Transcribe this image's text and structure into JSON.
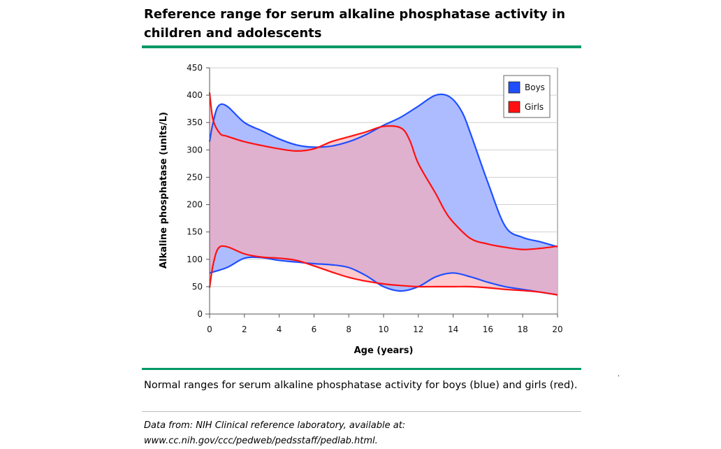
{
  "page": {
    "title": "Reference range for serum alkaline phosphatase activity in children and adolescents",
    "caption": "Normal ranges for serum alkaline phosphatase activity for boys (blue) and girls (red).",
    "source_line1": "Data from: NIH Clinical reference laboratory, available at:",
    "source_line2": "www.cc.nih.gov/ccc/pedweb/pedsstaff/pedlab.html.",
    "stray_mark": "."
  },
  "chart_data": {
    "type": "area",
    "title": "Reference range for serum alkaline phosphatase activity in children and adolescents",
    "xlabel": "Age (years)",
    "ylabel": "Alkaline phosphatase (units/L)",
    "xlim": [
      0,
      20
    ],
    "ylim": [
      0,
      450
    ],
    "x_ticks": [
      0,
      2,
      4,
      6,
      8,
      10,
      12,
      14,
      16,
      18,
      20
    ],
    "y_ticks": [
      0,
      50,
      100,
      150,
      200,
      250,
      300,
      350,
      400,
      450
    ],
    "grid": "horizontal",
    "legend_position": "top-right",
    "series": [
      {
        "name": "Boys",
        "color": "#1f4fff",
        "fill": "#a9b8ff",
        "upper": [
          [
            0,
            315
          ],
          [
            0.2,
            350
          ],
          [
            0.5,
            380
          ],
          [
            1,
            380
          ],
          [
            2,
            350
          ],
          [
            3,
            335
          ],
          [
            4,
            320
          ],
          [
            5,
            309
          ],
          [
            6,
            305
          ],
          [
            7,
            307
          ],
          [
            8,
            315
          ],
          [
            9,
            328
          ],
          [
            10,
            345
          ],
          [
            11,
            360
          ],
          [
            12,
            380
          ],
          [
            13,
            400
          ],
          [
            13.8,
            397
          ],
          [
            14.5,
            370
          ],
          [
            15,
            330
          ],
          [
            16,
            240
          ],
          [
            17,
            160
          ],
          [
            18,
            140
          ],
          [
            19,
            132
          ],
          [
            20,
            123
          ]
        ],
        "lower": [
          [
            0,
            75
          ],
          [
            1,
            85
          ],
          [
            2,
            102
          ],
          [
            3,
            103
          ],
          [
            4,
            98
          ],
          [
            5,
            95
          ],
          [
            6,
            92
          ],
          [
            7,
            90
          ],
          [
            8,
            85
          ],
          [
            9,
            70
          ],
          [
            10,
            50
          ],
          [
            11,
            42
          ],
          [
            12,
            50
          ],
          [
            13,
            68
          ],
          [
            14,
            75
          ],
          [
            15,
            68
          ],
          [
            16,
            58
          ],
          [
            17,
            50
          ],
          [
            18,
            45
          ],
          [
            19,
            40
          ],
          [
            20,
            35
          ]
        ]
      },
      {
        "name": "Girls",
        "color": "#ff1111",
        "fill": "#ffaab2",
        "upper": [
          [
            0,
            405
          ],
          [
            0.2,
            355
          ],
          [
            0.6,
            330
          ],
          [
            1,
            325
          ],
          [
            2,
            315
          ],
          [
            3,
            308
          ],
          [
            4,
            302
          ],
          [
            5,
            298
          ],
          [
            6,
            302
          ],
          [
            7,
            315
          ],
          [
            8,
            324
          ],
          [
            9,
            333
          ],
          [
            10,
            343
          ],
          [
            11,
            340
          ],
          [
            11.5,
            318
          ],
          [
            12,
            275
          ],
          [
            13,
            220
          ],
          [
            13.5,
            190
          ],
          [
            14,
            168
          ],
          [
            15,
            138
          ],
          [
            16,
            128
          ],
          [
            17,
            122
          ],
          [
            18,
            118
          ],
          [
            19,
            120
          ],
          [
            20,
            124
          ]
        ],
        "lower": [
          [
            0,
            48
          ],
          [
            0.2,
            90
          ],
          [
            0.5,
            120
          ],
          [
            1,
            123
          ],
          [
            2,
            110
          ],
          [
            3,
            104
          ],
          [
            4,
            102
          ],
          [
            5,
            98
          ],
          [
            6,
            88
          ],
          [
            7,
            77
          ],
          [
            8,
            67
          ],
          [
            9,
            60
          ],
          [
            10,
            55
          ],
          [
            11,
            52
          ],
          [
            12,
            50
          ],
          [
            13,
            50
          ],
          [
            14,
            50
          ],
          [
            15,
            50
          ],
          [
            16,
            48
          ],
          [
            17,
            45
          ],
          [
            18,
            43
          ],
          [
            19,
            40
          ],
          [
            20,
            35
          ]
        ]
      }
    ]
  }
}
